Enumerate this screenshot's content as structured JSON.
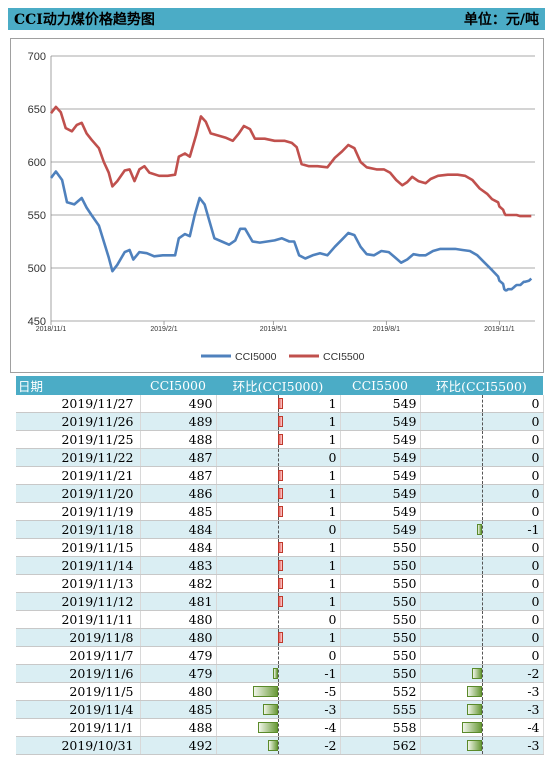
{
  "header": {
    "title": "CCI动力煤价格趋势图",
    "unit": "单位：元/吨"
  },
  "chart_data": {
    "type": "line",
    "ylim": [
      450,
      700
    ],
    "yticks": [
      450,
      500,
      550,
      600,
      650,
      700
    ],
    "xlim": [
      "2018-11-01",
      "2019-11-30"
    ],
    "xticks": [
      {
        "date": "2018-11-01",
        "label": "2018/11/1"
      },
      {
        "date": "2019-02-01",
        "label": "2019/2/1"
      },
      {
        "date": "2019-05-01",
        "label": "2019/5/1"
      },
      {
        "date": "2019-08-01",
        "label": "2019/8/1"
      },
      {
        "date": "2019-11-01",
        "label": "2019/11/1"
      }
    ],
    "legend_position": "bottom",
    "grid": true,
    "series": [
      {
        "name": "CCI5000",
        "color": "#4f81bd",
        "points": [
          [
            "2018-11-01",
            585
          ],
          [
            "2018-11-05",
            591
          ],
          [
            "2018-11-10",
            583
          ],
          [
            "2018-11-14",
            562
          ],
          [
            "2018-11-20",
            560
          ],
          [
            "2018-11-26",
            566
          ],
          [
            "2018-11-30",
            557
          ],
          [
            "2018-12-04",
            550
          ],
          [
            "2018-12-10",
            540
          ],
          [
            "2018-12-14",
            525
          ],
          [
            "2018-12-18",
            510
          ],
          [
            "2018-12-21",
            497
          ],
          [
            "2018-12-25",
            503
          ],
          [
            "2018-12-31",
            515
          ],
          [
            "2019-01-04",
            517
          ],
          [
            "2019-01-07",
            508
          ],
          [
            "2019-01-12",
            515
          ],
          [
            "2019-01-18",
            514
          ],
          [
            "2019-01-24",
            511
          ],
          [
            "2019-01-31",
            512
          ],
          [
            "2019-02-05",
            512
          ],
          [
            "2019-02-10",
            512
          ],
          [
            "2019-02-13",
            528
          ],
          [
            "2019-02-18",
            532
          ],
          [
            "2019-02-22",
            530
          ],
          [
            "2019-02-26",
            550
          ],
          [
            "2019-03-02",
            566
          ],
          [
            "2019-03-06",
            560
          ],
          [
            "2019-03-10",
            544
          ],
          [
            "2019-03-14",
            528
          ],
          [
            "2019-03-20",
            525
          ],
          [
            "2019-03-26",
            522
          ],
          [
            "2019-03-31",
            526
          ],
          [
            "2019-04-04",
            537
          ],
          [
            "2019-04-08",
            537
          ],
          [
            "2019-04-14",
            525
          ],
          [
            "2019-04-20",
            524
          ],
          [
            "2019-04-26",
            525
          ],
          [
            "2019-05-02",
            526
          ],
          [
            "2019-05-08",
            528
          ],
          [
            "2019-05-14",
            525
          ],
          [
            "2019-05-18",
            525
          ],
          [
            "2019-05-22",
            512
          ],
          [
            "2019-05-27",
            509
          ],
          [
            "2019-06-02",
            512
          ],
          [
            "2019-06-08",
            514
          ],
          [
            "2019-06-14",
            512
          ],
          [
            "2019-06-20",
            520
          ],
          [
            "2019-06-26",
            527
          ],
          [
            "2019-07-01",
            533
          ],
          [
            "2019-07-06",
            531
          ],
          [
            "2019-07-11",
            520
          ],
          [
            "2019-07-16",
            513
          ],
          [
            "2019-07-22",
            512
          ],
          [
            "2019-07-28",
            516
          ],
          [
            "2019-08-03",
            515
          ],
          [
            "2019-08-08",
            510
          ],
          [
            "2019-08-13",
            505
          ],
          [
            "2019-08-18",
            508
          ],
          [
            "2019-08-23",
            513
          ],
          [
            "2019-08-28",
            512
          ],
          [
            "2019-09-02",
            512
          ],
          [
            "2019-09-08",
            516
          ],
          [
            "2019-09-14",
            518
          ],
          [
            "2019-09-20",
            518
          ],
          [
            "2019-09-26",
            518
          ],
          [
            "2019-10-02",
            517
          ],
          [
            "2019-10-08",
            516
          ],
          [
            "2019-10-14",
            512
          ],
          [
            "2019-10-20",
            505
          ],
          [
            "2019-10-26",
            498
          ],
          [
            "2019-10-31",
            492
          ],
          [
            "2019-11-01",
            488
          ],
          [
            "2019-11-04",
            485
          ],
          [
            "2019-11-05",
            480
          ],
          [
            "2019-11-06",
            479
          ],
          [
            "2019-11-07",
            479
          ],
          [
            "2019-11-08",
            480
          ],
          [
            "2019-11-11",
            480
          ],
          [
            "2019-11-12",
            481
          ],
          [
            "2019-11-13",
            482
          ],
          [
            "2019-11-14",
            483
          ],
          [
            "2019-11-15",
            484
          ],
          [
            "2019-11-18",
            484
          ],
          [
            "2019-11-19",
            485
          ],
          [
            "2019-11-20",
            486
          ],
          [
            "2019-11-21",
            487
          ],
          [
            "2019-11-22",
            487
          ],
          [
            "2019-11-25",
            488
          ],
          [
            "2019-11-26",
            489
          ],
          [
            "2019-11-27",
            490
          ]
        ]
      },
      {
        "name": "CCI5500",
        "color": "#c0504d",
        "points": [
          [
            "2018-11-01",
            646
          ],
          [
            "2018-11-05",
            652
          ],
          [
            "2018-11-09",
            647
          ],
          [
            "2018-11-13",
            632
          ],
          [
            "2018-11-18",
            629
          ],
          [
            "2018-11-22",
            635
          ],
          [
            "2018-11-26",
            637
          ],
          [
            "2018-11-30",
            627
          ],
          [
            "2018-12-04",
            621
          ],
          [
            "2018-12-10",
            613
          ],
          [
            "2018-12-14",
            600
          ],
          [
            "2018-12-18",
            590
          ],
          [
            "2018-12-21",
            577
          ],
          [
            "2018-12-25",
            582
          ],
          [
            "2018-12-31",
            592
          ],
          [
            "2019-01-04",
            593
          ],
          [
            "2019-01-08",
            582
          ],
          [
            "2019-01-12",
            593
          ],
          [
            "2019-01-16",
            596
          ],
          [
            "2019-01-20",
            590
          ],
          [
            "2019-01-28",
            587
          ],
          [
            "2019-02-04",
            587
          ],
          [
            "2019-02-10",
            588
          ],
          [
            "2019-02-13",
            605
          ],
          [
            "2019-02-18",
            608
          ],
          [
            "2019-02-22",
            605
          ],
          [
            "2019-02-27",
            625
          ],
          [
            "2019-03-03",
            643
          ],
          [
            "2019-03-07",
            638
          ],
          [
            "2019-03-11",
            627
          ],
          [
            "2019-03-17",
            625
          ],
          [
            "2019-03-23",
            623
          ],
          [
            "2019-03-29",
            620
          ],
          [
            "2019-04-03",
            627
          ],
          [
            "2019-04-07",
            634
          ],
          [
            "2019-04-12",
            631
          ],
          [
            "2019-04-16",
            622
          ],
          [
            "2019-04-24",
            622
          ],
          [
            "2019-05-02",
            620
          ],
          [
            "2019-05-10",
            620
          ],
          [
            "2019-05-16",
            618
          ],
          [
            "2019-05-20",
            614
          ],
          [
            "2019-05-24",
            598
          ],
          [
            "2019-05-30",
            596
          ],
          [
            "2019-06-06",
            596
          ],
          [
            "2019-06-14",
            595
          ],
          [
            "2019-06-20",
            604
          ],
          [
            "2019-06-26",
            610
          ],
          [
            "2019-07-01",
            616
          ],
          [
            "2019-07-06",
            613
          ],
          [
            "2019-07-11",
            600
          ],
          [
            "2019-07-16",
            595
          ],
          [
            "2019-07-24",
            593
          ],
          [
            "2019-07-30",
            593
          ],
          [
            "2019-08-04",
            590
          ],
          [
            "2019-08-09",
            583
          ],
          [
            "2019-08-14",
            578
          ],
          [
            "2019-08-18",
            581
          ],
          [
            "2019-08-22",
            586
          ],
          [
            "2019-08-27",
            582
          ],
          [
            "2019-09-02",
            580
          ],
          [
            "2019-09-06",
            584
          ],
          [
            "2019-09-12",
            587
          ],
          [
            "2019-09-20",
            588
          ],
          [
            "2019-09-28",
            588
          ],
          [
            "2019-10-04",
            587
          ],
          [
            "2019-10-10",
            583
          ],
          [
            "2019-10-16",
            575
          ],
          [
            "2019-10-22",
            570
          ],
          [
            "2019-10-26",
            565
          ],
          [
            "2019-10-31",
            562
          ],
          [
            "2019-11-01",
            558
          ],
          [
            "2019-11-04",
            555
          ],
          [
            "2019-11-05",
            552
          ],
          [
            "2019-11-06",
            550
          ],
          [
            "2019-11-08",
            550
          ],
          [
            "2019-11-15",
            550
          ],
          [
            "2019-11-18",
            549
          ],
          [
            "2019-11-27",
            549
          ]
        ]
      }
    ]
  },
  "table": {
    "headers": {
      "date": "日期",
      "cci5000": "CCI5000",
      "diff5000": "环比(CCI5000)",
      "cci5500": "CCI5500",
      "diff5500": "环比(CCI5500)"
    },
    "rows": [
      {
        "date": "2019/11/27",
        "cci5000": "490",
        "diff5000": "1",
        "cci5500": "549",
        "diff5500": "0"
      },
      {
        "date": "2019/11/26",
        "cci5000": "489",
        "diff5000": "1",
        "cci5500": "549",
        "diff5500": "0"
      },
      {
        "date": "2019/11/25",
        "cci5000": "488",
        "diff5000": "1",
        "cci5500": "549",
        "diff5500": "0"
      },
      {
        "date": "2019/11/22",
        "cci5000": "487",
        "diff5000": "0",
        "cci5500": "549",
        "diff5500": "0"
      },
      {
        "date": "2019/11/21",
        "cci5000": "487",
        "diff5000": "1",
        "cci5500": "549",
        "diff5500": "0"
      },
      {
        "date": "2019/11/20",
        "cci5000": "486",
        "diff5000": "1",
        "cci5500": "549",
        "diff5500": "0"
      },
      {
        "date": "2019/11/19",
        "cci5000": "485",
        "diff5000": "1",
        "cci5500": "549",
        "diff5500": "0"
      },
      {
        "date": "2019/11/18",
        "cci5000": "484",
        "diff5000": "0",
        "cci5500": "549",
        "diff5500": "-1"
      },
      {
        "date": "2019/11/15",
        "cci5000": "484",
        "diff5000": "1",
        "cci5500": "550",
        "diff5500": "0"
      },
      {
        "date": "2019/11/14",
        "cci5000": "483",
        "diff5000": "1",
        "cci5500": "550",
        "diff5500": "0"
      },
      {
        "date": "2019/11/13",
        "cci5000": "482",
        "diff5000": "1",
        "cci5500": "550",
        "diff5500": "0"
      },
      {
        "date": "2019/11/12",
        "cci5000": "481",
        "diff5000": "1",
        "cci5500": "550",
        "diff5500": "0"
      },
      {
        "date": "2019/11/11",
        "cci5000": "480",
        "diff5000": "0",
        "cci5500": "550",
        "diff5500": "0"
      },
      {
        "date": "2019/11/8",
        "cci5000": "480",
        "diff5000": "1",
        "cci5500": "550",
        "diff5500": "0"
      },
      {
        "date": "2019/11/7",
        "cci5000": "479",
        "diff5000": "0",
        "cci5500": "550",
        "diff5500": "0"
      },
      {
        "date": "2019/11/6",
        "cci5000": "479",
        "diff5000": "-1",
        "cci5500": "550",
        "diff5500": "-2"
      },
      {
        "date": "2019/11/5",
        "cci5000": "480",
        "diff5000": "-5",
        "cci5500": "552",
        "diff5500": "-3"
      },
      {
        "date": "2019/11/4",
        "cci5000": "485",
        "diff5000": "-3",
        "cci5500": "555",
        "diff5500": "-3"
      },
      {
        "date": "2019/11/1",
        "cci5000": "488",
        "diff5000": "-4",
        "cci5500": "558",
        "diff5500": "-4"
      },
      {
        "date": "2019/10/31",
        "cci5000": "492",
        "diff5000": "-2",
        "cci5500": "562",
        "diff5500": "-3"
      }
    ]
  }
}
